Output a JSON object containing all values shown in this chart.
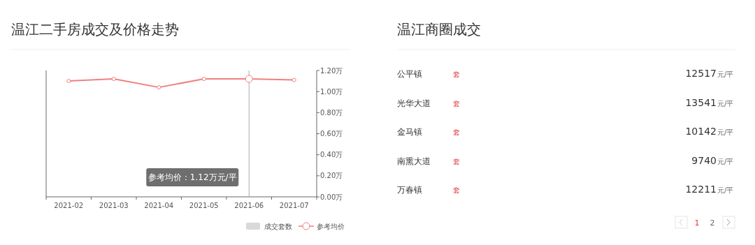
{
  "chart_data": [
    {
      "type": "line",
      "title": "温江二手房成交及价格走势",
      "categories": [
        "2021-02",
        "2021-03",
        "2021-04",
        "2021-05",
        "2021-06",
        "2021-07"
      ],
      "series": [
        {
          "name": "成交套数",
          "type": "bar",
          "color": "#d9d9d9",
          "values": [
            null,
            null,
            null,
            null,
            null,
            null
          ]
        },
        {
          "name": "参考均价",
          "type": "line",
          "color": "#f08080",
          "axis": "y2",
          "values": [
            1.1,
            1.12,
            1.04,
            1.12,
            1.12,
            1.11
          ]
        }
      ],
      "y2lim": [
        0,
        1.2
      ],
      "y2ticks": [
        {
          "value": 0,
          "label": "0.00万"
        },
        {
          "value": 0.2,
          "label": "0.20万"
        },
        {
          "value": 0.4,
          "label": "0.40万"
        },
        {
          "value": 0.6,
          "label": "0.60万"
        },
        {
          "value": 0.8,
          "label": "0.80万"
        },
        {
          "value": 1.0,
          "label": "1.00万"
        },
        {
          "value": 1.2,
          "label": "1.20万"
        }
      ],
      "annotations": [
        "参考均价：1.12万元/平"
      ],
      "ref_lines": [
        {
          "axis": "x",
          "value": "2021-06",
          "color": "#aaaaaa"
        }
      ],
      "marker": "circle",
      "legend": "bottom right",
      "grid": false
    },
    {
      "type": "other",
      "title": "温江商圈成交",
      "categories": [
        "公平镇",
        "光华大道",
        "金马镇",
        "南熏大道",
        "万春镇"
      ],
      "values": [
        12517,
        13541,
        10142,
        9740,
        12211
      ],
      "data_labels": true,
      "annotations": [
        "套",
        "元/平",
        "1",
        "2"
      ]
    }
  ]
}
